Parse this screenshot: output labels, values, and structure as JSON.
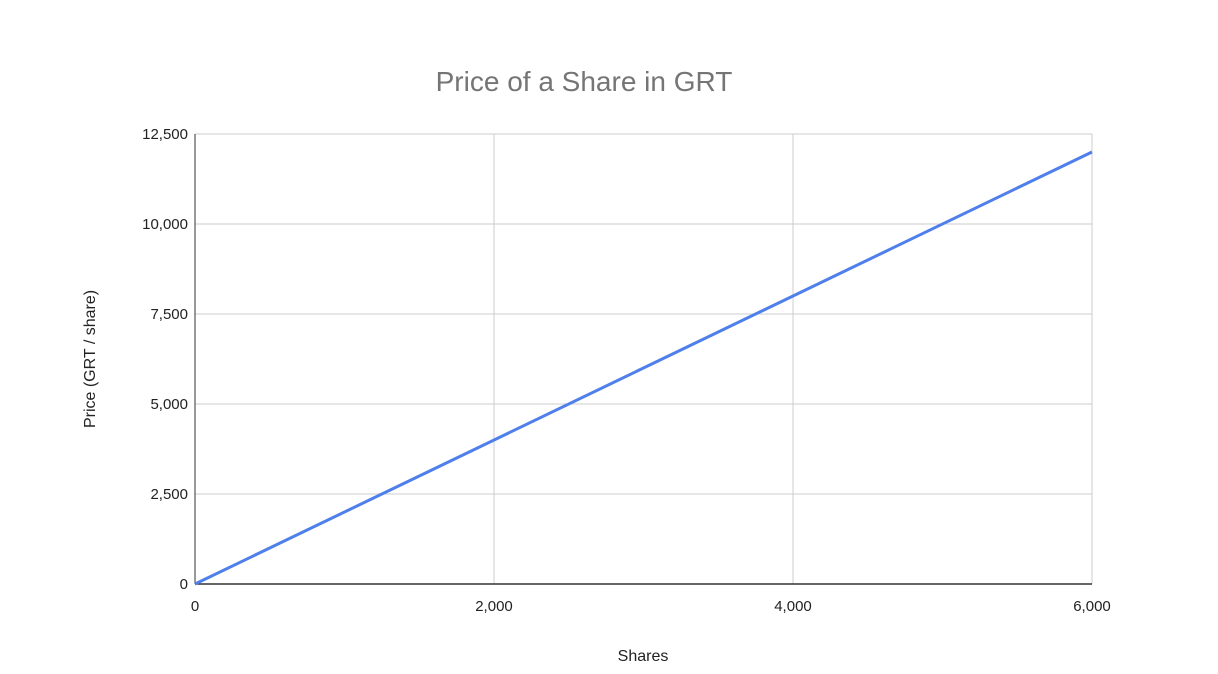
{
  "chart_data": {
    "type": "line",
    "title": "Price of a Share in GRT",
    "xlabel": "Shares",
    "ylabel": "Price (GRT / share)",
    "xlim": [
      0,
      6000
    ],
    "ylim": [
      0,
      12500
    ],
    "x_ticks": [
      0,
      2000,
      4000,
      6000
    ],
    "x_tick_labels": [
      "0",
      "2,000",
      "4,000",
      "6,000"
    ],
    "y_ticks": [
      0,
      2500,
      5000,
      7500,
      10000,
      12500
    ],
    "y_tick_labels": [
      "0",
      "2,500",
      "5,000",
      "7,500",
      "10,000",
      "12,500"
    ],
    "grid": true,
    "series": [
      {
        "x": [
          0,
          6000
        ],
        "y": [
          0,
          12000
        ],
        "color": "#4f7fea"
      }
    ]
  }
}
